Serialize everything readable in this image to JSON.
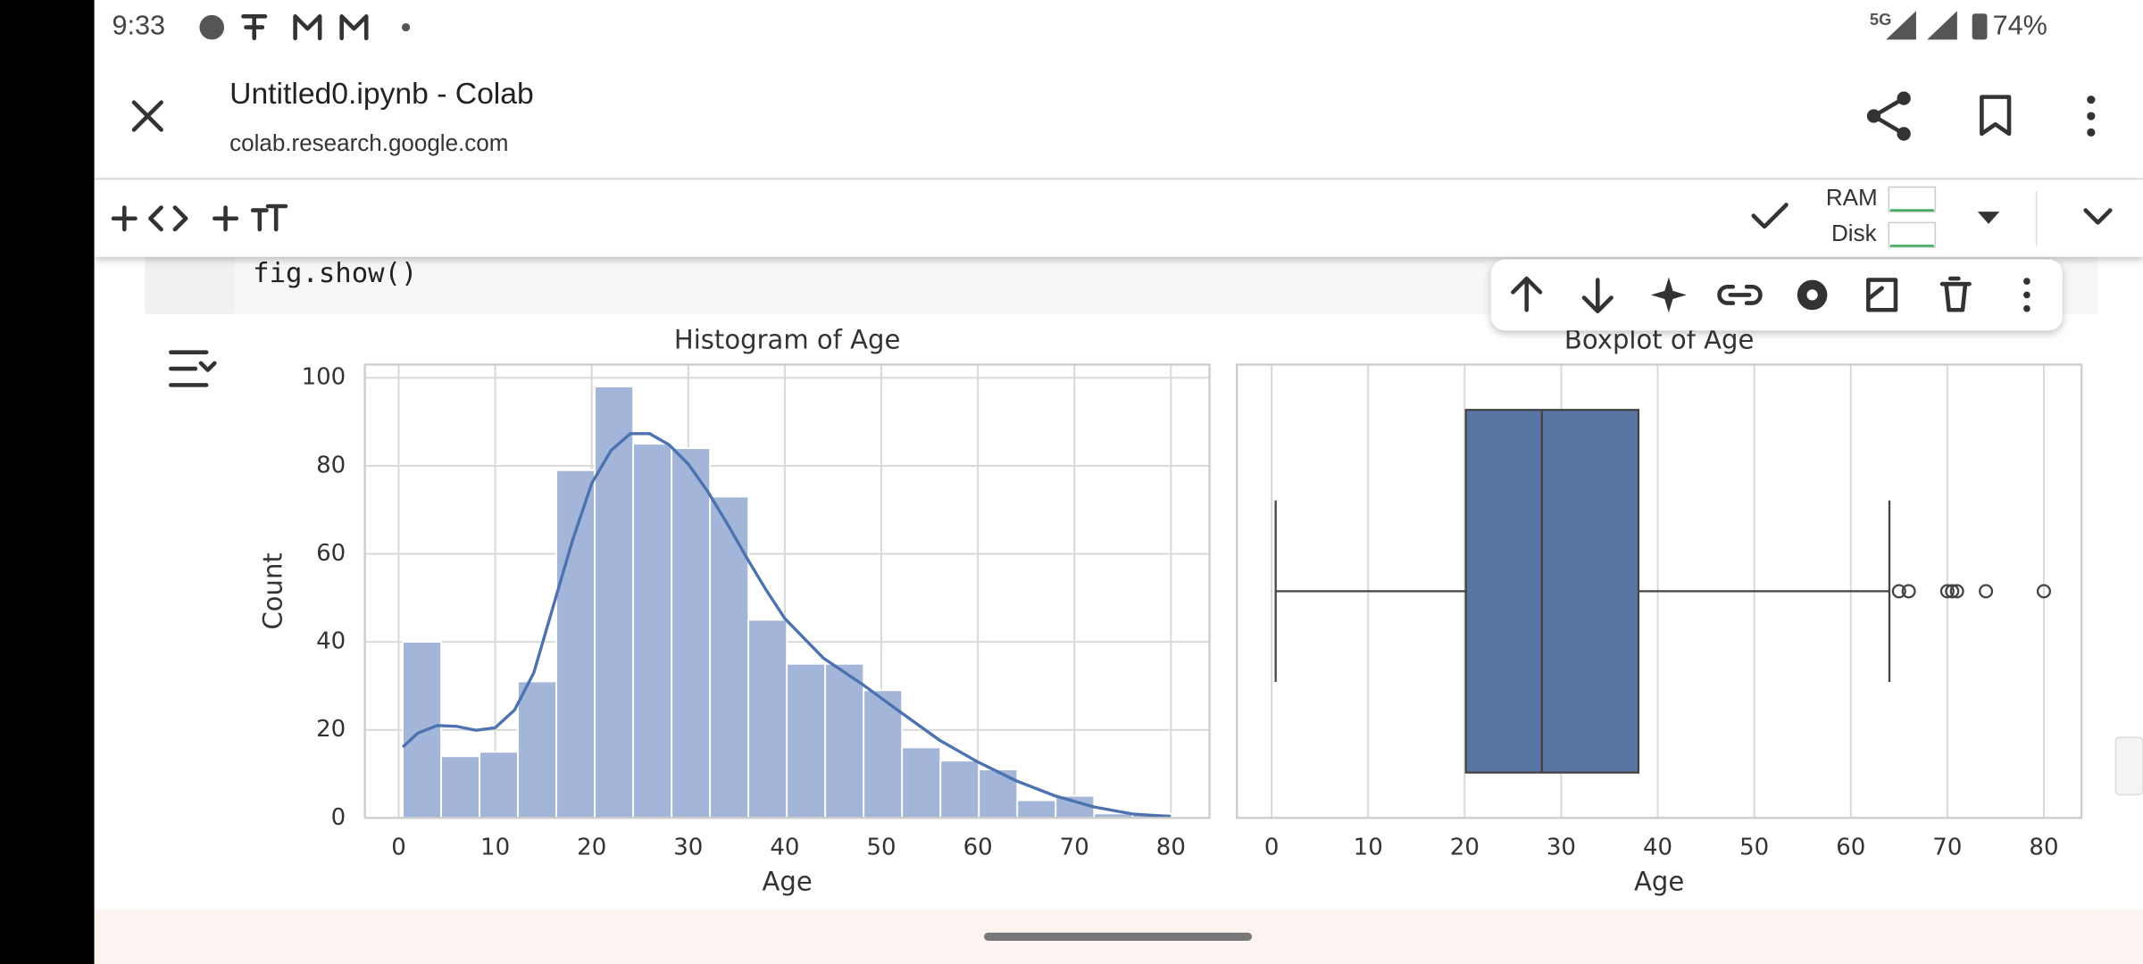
{
  "status_bar": {
    "time": "9:33",
    "network": "5G",
    "battery": "74%"
  },
  "header": {
    "title": "Untitled0.ipynb - Colab",
    "url": "colab.research.google.com"
  },
  "toolbar": {
    "ram": "RAM",
    "disk": "Disk"
  },
  "cell": {
    "code": "fig.show()"
  },
  "chart_data": [
    {
      "type": "histogram",
      "title": "Histogram of Age",
      "x_label": "Age",
      "y_label": "Count",
      "bins": [
        0.42,
        4.399,
        8.378,
        12.357,
        16.336,
        20.315,
        24.294,
        28.273,
        32.252,
        36.231,
        40.21,
        44.189,
        48.168,
        52.147,
        56.126,
        60.105,
        64.084,
        68.063,
        72.042,
        76.021,
        80
      ],
      "values": [
        40,
        14,
        15,
        31,
        79,
        98,
        85,
        84,
        73,
        45,
        35,
        35,
        29,
        16,
        13,
        11,
        4,
        5,
        1,
        1
      ],
      "color": "#a3b5d8",
      "kde": {
        "color": "#4c72b0",
        "x": [
          0.42,
          2,
          4,
          6,
          8,
          10,
          12,
          14,
          16,
          18,
          20,
          22,
          24,
          26,
          28,
          30,
          32,
          34,
          36,
          38,
          40,
          44,
          48,
          52,
          56,
          60,
          64,
          68,
          72,
          76,
          80
        ],
        "values": [
          16.1,
          19.3,
          21,
          20.8,
          19.9,
          20.5,
          24.5,
          33,
          48,
          63,
          76,
          83.5,
          87.3,
          87.3,
          84.8,
          80.4,
          74.2,
          67,
          59.3,
          52,
          45.3,
          36.3,
          30.4,
          24,
          17.7,
          12.7,
          8.4,
          5,
          2.5,
          0.9,
          0.3
        ]
      },
      "xlim": [
        -3.5,
        84
      ],
      "xticks": [
        0,
        10,
        20,
        30,
        40,
        50,
        60,
        70,
        80
      ],
      "ylim": [
        0,
        103
      ],
      "yticks": [
        0,
        20,
        40,
        60,
        80,
        100
      ],
      "grid": true
    },
    {
      "type": "box",
      "title": "Boxplot of Age",
      "x_label": "Age",
      "stats": {
        "whislo": 0.42,
        "q1": 20.125,
        "med": 28,
        "q3": 38,
        "whishi": 64
      },
      "outliers": [
        65,
        66,
        70,
        70.5,
        71,
        74,
        80
      ],
      "color": "#5875a4",
      "xlim": [
        -3.6,
        83.9
      ],
      "xticks": [
        0,
        10,
        20,
        30,
        40,
        50,
        60,
        70,
        80
      ],
      "grid": true
    }
  ]
}
